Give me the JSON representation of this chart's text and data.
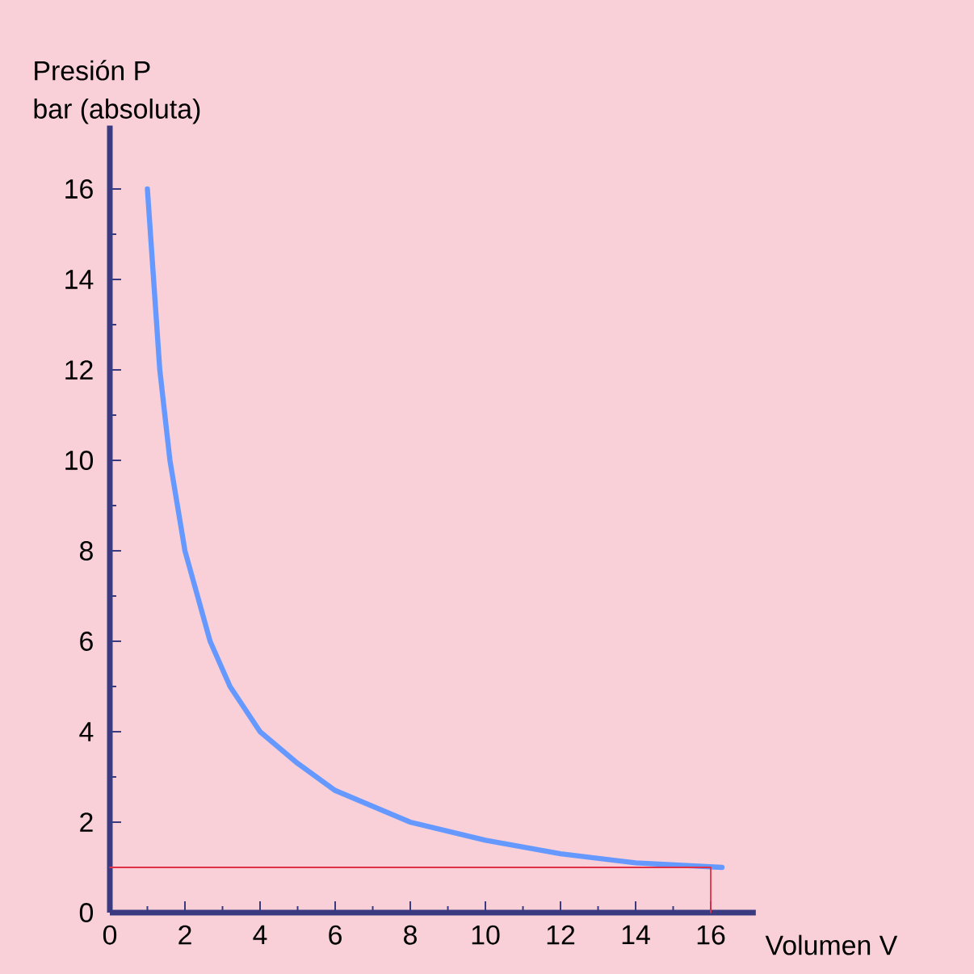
{
  "chart_data": {
    "type": "line",
    "ylabel": "Presión  P",
    "xlabel": "Volumen  V",
    "annotations": [
      "bar (absoluta)"
    ],
    "xlim": [
      0,
      17.2
    ],
    "ylim": [
      0,
      17.4
    ],
    "xticks": [
      0,
      2,
      4,
      6,
      8,
      10,
      12,
      14,
      16
    ],
    "yticks": [
      0,
      2,
      4,
      6,
      8,
      10,
      12,
      14,
      16
    ],
    "grid": false,
    "series": [
      {
        "color": "#6699ff",
        "x": [
          1,
          1.33,
          1.6,
          2,
          2.67,
          3.2,
          4,
          5,
          6,
          8,
          10,
          12,
          14,
          16.3
        ],
        "values": [
          16,
          12,
          10,
          8,
          6,
          5,
          4,
          3.3,
          2.7,
          2,
          1.6,
          1.3,
          1.1,
          1
        ]
      },
      {
        "color": "#e03048",
        "x": [
          0,
          16,
          16
        ],
        "values": [
          1,
          1,
          0
        ]
      }
    ]
  }
}
